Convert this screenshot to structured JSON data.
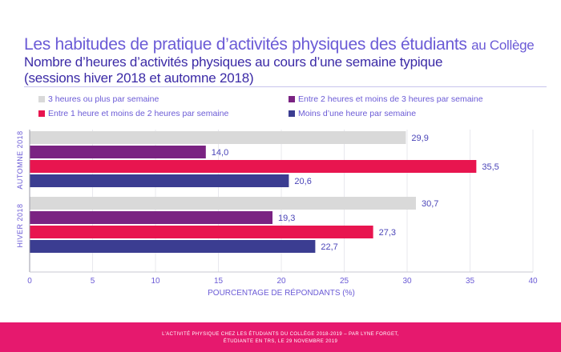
{
  "title": {
    "main": "Les habitudes de pratique d’activités physiques des étudiants",
    "suffix": "au Collège",
    "subtitle_1": "Nombre d’heures d’activités physiques au cours d’une semaine typique",
    "subtitle_2": "(sessions hiver 2018 et automne 2018)"
  },
  "footer": {
    "line_1": "L’ACTIVITÉ PHYSIQUE CHEZ LES ÉTUDIANTS DU COLLÈGE 2018-2019 – PAR LYNE FORGET,",
    "line_2": "ÉTUDIANTE EN TRS, LE 29 NOVEMBRE 2019"
  },
  "chart_data": {
    "type": "bar",
    "orientation": "horizontal",
    "categories": [
      "AUTOMNE 2018",
      "HIVER 2018"
    ],
    "series": [
      {
        "name": "3 heures ou plus par semaine",
        "color": "#d9d9d9",
        "values": [
          29.9,
          30.7
        ],
        "labels": [
          "29,9",
          "30,7"
        ]
      },
      {
        "name": "Entre 2 heures et moins de 3 heures par semaine",
        "color": "#7a2382",
        "values": [
          14.0,
          19.3
        ],
        "labels": [
          "14,0",
          "19,3"
        ]
      },
      {
        "name": "Entre 1 heure et moins de 2 heures par semaine",
        "color": "#e8154f",
        "values": [
          35.5,
          27.3
        ],
        "labels": [
          "35,5",
          "27,3"
        ]
      },
      {
        "name": "Moins d’une heure par semaine",
        "color": "#3b3d91",
        "values": [
          20.6,
          22.7
        ],
        "labels": [
          "20,6",
          "22,7"
        ]
      }
    ],
    "xlabel": "POURCENTAGE DE RÉPONDANTS (%)",
    "ylabel": "",
    "xlim": [
      0,
      40
    ],
    "xticks": [
      "0",
      "5",
      "10",
      "15",
      "20",
      "25",
      "30",
      "35",
      "40"
    ],
    "grid": true,
    "legend_position": "top",
    "label_color": "#4a44b8",
    "axis_color": "#6b5bd6"
  }
}
